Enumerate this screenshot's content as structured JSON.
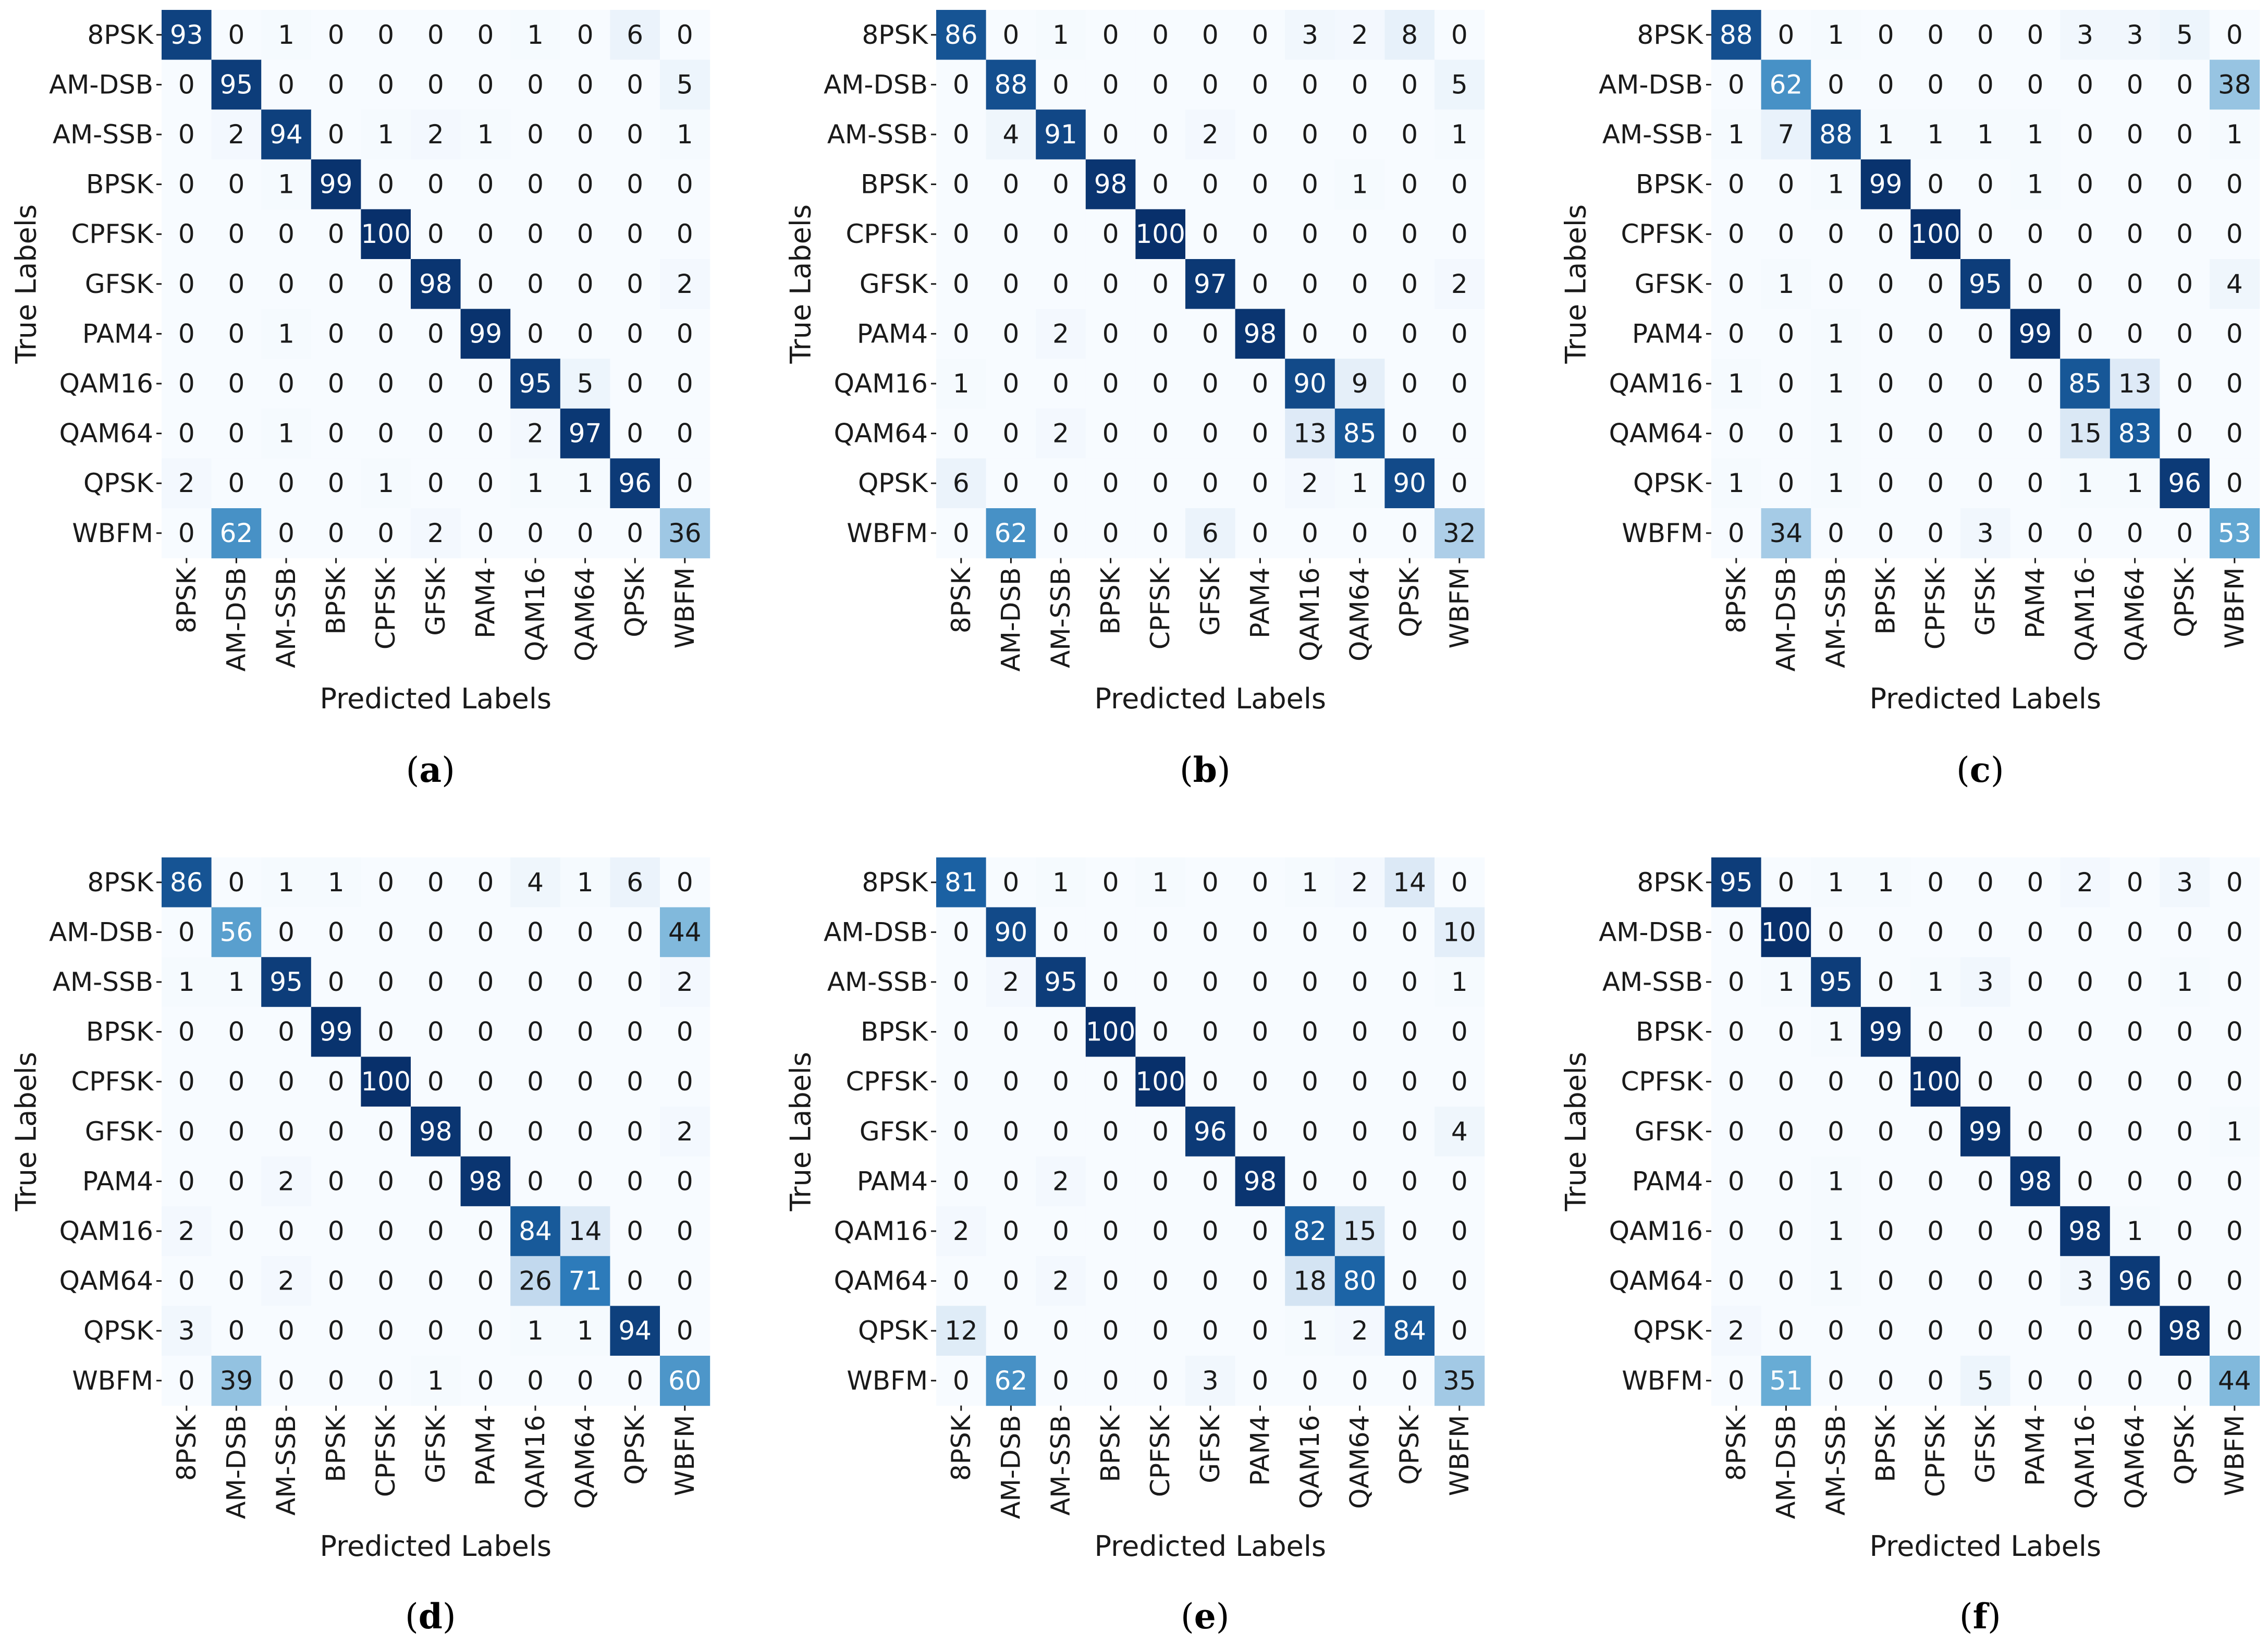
{
  "figure": {
    "panel_captions": [
      "(a)",
      "(b)",
      "(c)",
      "(d)",
      "(e)",
      "(f)"
    ]
  },
  "colors": {
    "low": "#f7fbff",
    "mid": "#6baed6",
    "high": "#08306b",
    "text_dark": "#1a1a1a",
    "text_light": "#ffffff"
  },
  "chart_data": [
    {
      "type": "heatmap",
      "caption": "(a)",
      "xlabel": "Predicted Labels",
      "ylabel": "True Labels",
      "classes": [
        "8PSK",
        "AM-DSB",
        "AM-SSB",
        "BPSK",
        "CPFSK",
        "GFSK",
        "PAM4",
        "QAM16",
        "QAM64",
        "QPSK",
        "WBFM"
      ],
      "vmin": 0,
      "vmax": 100,
      "matrix": [
        [
          93,
          0,
          1,
          0,
          0,
          0,
          0,
          1,
          0,
          6,
          0
        ],
        [
          0,
          95,
          0,
          0,
          0,
          0,
          0,
          0,
          0,
          0,
          5
        ],
        [
          0,
          2,
          94,
          0,
          1,
          2,
          1,
          0,
          0,
          0,
          1
        ],
        [
          0,
          0,
          1,
          99,
          0,
          0,
          0,
          0,
          0,
          0,
          0
        ],
        [
          0,
          0,
          0,
          0,
          100,
          0,
          0,
          0,
          0,
          0,
          0
        ],
        [
          0,
          0,
          0,
          0,
          0,
          98,
          0,
          0,
          0,
          0,
          2
        ],
        [
          0,
          0,
          1,
          0,
          0,
          0,
          99,
          0,
          0,
          0,
          0
        ],
        [
          0,
          0,
          0,
          0,
          0,
          0,
          0,
          95,
          5,
          0,
          0
        ],
        [
          0,
          0,
          1,
          0,
          0,
          0,
          0,
          2,
          97,
          0,
          0
        ],
        [
          2,
          0,
          0,
          0,
          1,
          0,
          0,
          1,
          1,
          96,
          0
        ],
        [
          0,
          62,
          0,
          0,
          0,
          2,
          0,
          0,
          0,
          0,
          36
        ]
      ]
    },
    {
      "type": "heatmap",
      "caption": "(b)",
      "xlabel": "Predicted Labels",
      "ylabel": "True Labels",
      "classes": [
        "8PSK",
        "AM-DSB",
        "AM-SSB",
        "BPSK",
        "CPFSK",
        "GFSK",
        "PAM4",
        "QAM16",
        "QAM64",
        "QPSK",
        "WBFM"
      ],
      "vmin": 0,
      "vmax": 100,
      "matrix": [
        [
          86,
          0,
          1,
          0,
          0,
          0,
          0,
          3,
          2,
          8,
          0
        ],
        [
          0,
          88,
          0,
          0,
          0,
          0,
          0,
          0,
          0,
          0,
          5
        ],
        [
          0,
          4,
          91,
          0,
          0,
          2,
          0,
          0,
          0,
          0,
          1
        ],
        [
          0,
          0,
          0,
          98,
          0,
          0,
          0,
          0,
          1,
          0,
          0
        ],
        [
          0,
          0,
          0,
          0,
          100,
          0,
          0,
          0,
          0,
          0,
          0
        ],
        [
          0,
          0,
          0,
          0,
          0,
          97,
          0,
          0,
          0,
          0,
          2
        ],
        [
          0,
          0,
          2,
          0,
          0,
          0,
          98,
          0,
          0,
          0,
          0
        ],
        [
          1,
          0,
          0,
          0,
          0,
          0,
          0,
          90,
          9,
          0,
          0
        ],
        [
          0,
          0,
          2,
          0,
          0,
          0,
          0,
          13,
          85,
          0,
          0
        ],
        [
          6,
          0,
          0,
          0,
          0,
          0,
          0,
          2,
          1,
          90,
          0
        ],
        [
          0,
          62,
          0,
          0,
          0,
          6,
          0,
          0,
          0,
          0,
          32
        ]
      ]
    },
    {
      "type": "heatmap",
      "caption": "(c)",
      "xlabel": "Predicted Labels",
      "ylabel": "True Labels",
      "classes": [
        "8PSK",
        "AM-DSB",
        "AM-SSB",
        "BPSK",
        "CPFSK",
        "GFSK",
        "PAM4",
        "QAM16",
        "QAM64",
        "QPSK",
        "WBFM"
      ],
      "vmin": 0,
      "vmax": 100,
      "matrix": [
        [
          88,
          0,
          1,
          0,
          0,
          0,
          0,
          3,
          3,
          5,
          0
        ],
        [
          0,
          62,
          0,
          0,
          0,
          0,
          0,
          0,
          0,
          0,
          38
        ],
        [
          1,
          7,
          88,
          1,
          1,
          1,
          1,
          0,
          0,
          0,
          1
        ],
        [
          0,
          0,
          1,
          99,
          0,
          0,
          1,
          0,
          0,
          0,
          0
        ],
        [
          0,
          0,
          0,
          0,
          100,
          0,
          0,
          0,
          0,
          0,
          0
        ],
        [
          0,
          1,
          0,
          0,
          0,
          95,
          0,
          0,
          0,
          0,
          4
        ],
        [
          0,
          0,
          1,
          0,
          0,
          0,
          99,
          0,
          0,
          0,
          0
        ],
        [
          1,
          0,
          1,
          0,
          0,
          0,
          0,
          85,
          13,
          0,
          0
        ],
        [
          0,
          0,
          1,
          0,
          0,
          0,
          0,
          15,
          83,
          0,
          0
        ],
        [
          1,
          0,
          1,
          0,
          0,
          0,
          0,
          1,
          1,
          96,
          0
        ],
        [
          0,
          34,
          0,
          0,
          0,
          3,
          0,
          0,
          0,
          0,
          53
        ]
      ]
    },
    {
      "type": "heatmap",
      "caption": "(d)",
      "xlabel": "Predicted Labels",
      "ylabel": "True Labels",
      "classes": [
        "8PSK",
        "AM-DSB",
        "AM-SSB",
        "BPSK",
        "CPFSK",
        "GFSK",
        "PAM4",
        "QAM16",
        "QAM64",
        "QPSK",
        "WBFM"
      ],
      "vmin": 0,
      "vmax": 100,
      "matrix": [
        [
          86,
          0,
          1,
          1,
          0,
          0,
          0,
          4,
          1,
          6,
          0
        ],
        [
          0,
          56,
          0,
          0,
          0,
          0,
          0,
          0,
          0,
          0,
          44
        ],
        [
          1,
          1,
          95,
          0,
          0,
          0,
          0,
          0,
          0,
          0,
          2
        ],
        [
          0,
          0,
          0,
          99,
          0,
          0,
          0,
          0,
          0,
          0,
          0
        ],
        [
          0,
          0,
          0,
          0,
          100,
          0,
          0,
          0,
          0,
          0,
          0
        ],
        [
          0,
          0,
          0,
          0,
          0,
          98,
          0,
          0,
          0,
          0,
          2
        ],
        [
          0,
          0,
          2,
          0,
          0,
          0,
          98,
          0,
          0,
          0,
          0
        ],
        [
          2,
          0,
          0,
          0,
          0,
          0,
          0,
          84,
          14,
          0,
          0
        ],
        [
          0,
          0,
          2,
          0,
          0,
          0,
          0,
          26,
          71,
          0,
          0
        ],
        [
          3,
          0,
          0,
          0,
          0,
          0,
          0,
          1,
          1,
          94,
          0
        ],
        [
          0,
          39,
          0,
          0,
          0,
          1,
          0,
          0,
          0,
          0,
          60
        ]
      ]
    },
    {
      "type": "heatmap",
      "caption": "(e)",
      "xlabel": "Predicted Labels",
      "ylabel": "True Labels",
      "classes": [
        "8PSK",
        "AM-DSB",
        "AM-SSB",
        "BPSK",
        "CPFSK",
        "GFSK",
        "PAM4",
        "QAM16",
        "QAM64",
        "QPSK",
        "WBFM"
      ],
      "vmin": 0,
      "vmax": 100,
      "matrix": [
        [
          81,
          0,
          1,
          0,
          1,
          0,
          0,
          1,
          2,
          14,
          0
        ],
        [
          0,
          90,
          0,
          0,
          0,
          0,
          0,
          0,
          0,
          0,
          10
        ],
        [
          0,
          2,
          95,
          0,
          0,
          0,
          0,
          0,
          0,
          0,
          1
        ],
        [
          0,
          0,
          0,
          100,
          0,
          0,
          0,
          0,
          0,
          0,
          0
        ],
        [
          0,
          0,
          0,
          0,
          100,
          0,
          0,
          0,
          0,
          0,
          0
        ],
        [
          0,
          0,
          0,
          0,
          0,
          96,
          0,
          0,
          0,
          0,
          4
        ],
        [
          0,
          0,
          2,
          0,
          0,
          0,
          98,
          0,
          0,
          0,
          0
        ],
        [
          2,
          0,
          0,
          0,
          0,
          0,
          0,
          82,
          15,
          0,
          0
        ],
        [
          0,
          0,
          2,
          0,
          0,
          0,
          0,
          18,
          80,
          0,
          0
        ],
        [
          12,
          0,
          0,
          0,
          0,
          0,
          0,
          1,
          2,
          84,
          0
        ],
        [
          0,
          62,
          0,
          0,
          0,
          3,
          0,
          0,
          0,
          0,
          35
        ]
      ]
    },
    {
      "type": "heatmap",
      "caption": "(f)",
      "xlabel": "Predicted Labels",
      "ylabel": "True Labels",
      "classes": [
        "8PSK",
        "AM-DSB",
        "AM-SSB",
        "BPSK",
        "CPFSK",
        "GFSK",
        "PAM4",
        "QAM16",
        "QAM64",
        "QPSK",
        "WBFM"
      ],
      "vmin": 0,
      "vmax": 100,
      "matrix": [
        [
          95,
          0,
          1,
          1,
          0,
          0,
          0,
          2,
          0,
          3,
          0
        ],
        [
          0,
          100,
          0,
          0,
          0,
          0,
          0,
          0,
          0,
          0,
          0
        ],
        [
          0,
          1,
          95,
          0,
          1,
          3,
          0,
          0,
          0,
          1,
          0
        ],
        [
          0,
          0,
          1,
          99,
          0,
          0,
          0,
          0,
          0,
          0,
          0
        ],
        [
          0,
          0,
          0,
          0,
          100,
          0,
          0,
          0,
          0,
          0,
          0
        ],
        [
          0,
          0,
          0,
          0,
          0,
          99,
          0,
          0,
          0,
          0,
          1
        ],
        [
          0,
          0,
          1,
          0,
          0,
          0,
          98,
          0,
          0,
          0,
          0
        ],
        [
          0,
          0,
          1,
          0,
          0,
          0,
          0,
          98,
          1,
          0,
          0
        ],
        [
          0,
          0,
          1,
          0,
          0,
          0,
          0,
          3,
          96,
          0,
          0
        ],
        [
          2,
          0,
          0,
          0,
          0,
          0,
          0,
          0,
          0,
          98,
          0
        ],
        [
          0,
          51,
          0,
          0,
          0,
          5,
          0,
          0,
          0,
          0,
          44
        ]
      ]
    }
  ]
}
